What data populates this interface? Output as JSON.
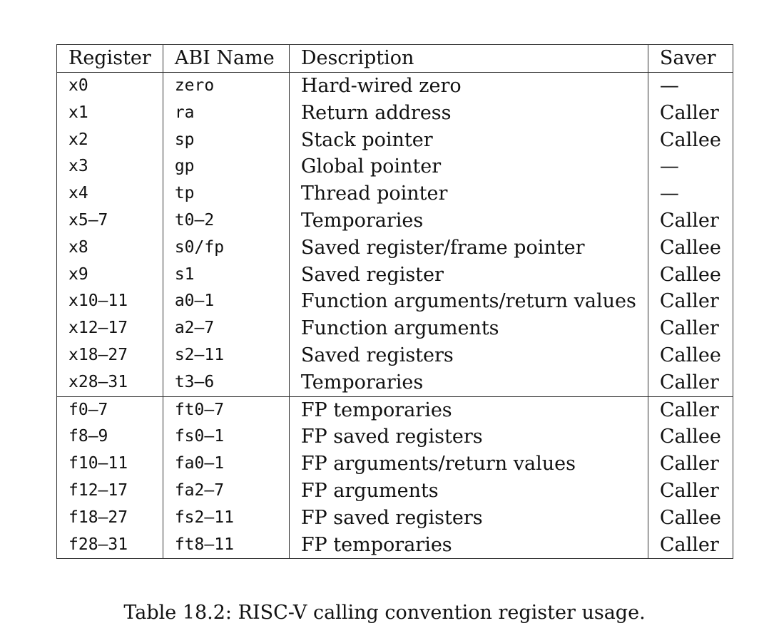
{
  "table": {
    "headers": [
      "Register",
      "ABI Name",
      "Description",
      "Saver"
    ],
    "groups": [
      {
        "rows": [
          {
            "register": "x0",
            "abi": "zero",
            "description": "Hard-wired zero",
            "saver": "—"
          },
          {
            "register": "x1",
            "abi": "ra",
            "description": "Return address",
            "saver": "Caller"
          },
          {
            "register": "x2",
            "abi": "sp",
            "description": "Stack pointer",
            "saver": "Callee"
          },
          {
            "register": "x3",
            "abi": "gp",
            "description": "Global pointer",
            "saver": "—"
          },
          {
            "register": "x4",
            "abi": "tp",
            "description": "Thread pointer",
            "saver": "—"
          },
          {
            "register": "x5–7",
            "abi": "t0–2",
            "description": "Temporaries",
            "saver": "Caller"
          },
          {
            "register": "x8",
            "abi": "s0/fp",
            "description": "Saved register/frame pointer",
            "saver": "Callee"
          },
          {
            "register": "x9",
            "abi": "s1",
            "description": "Saved register",
            "saver": "Callee"
          },
          {
            "register": "x10–11",
            "abi": "a0–1",
            "description": "Function arguments/return values",
            "saver": "Caller"
          },
          {
            "register": "x12–17",
            "abi": "a2–7",
            "description": "Function arguments",
            "saver": "Caller"
          },
          {
            "register": "x18–27",
            "abi": "s2–11",
            "description": "Saved registers",
            "saver": "Callee"
          },
          {
            "register": "x28–31",
            "abi": "t3–6",
            "description": "Temporaries",
            "saver": "Caller"
          }
        ]
      },
      {
        "rows": [
          {
            "register": "f0–7",
            "abi": "ft0–7",
            "description": "FP temporaries",
            "saver": "Caller"
          },
          {
            "register": "f8–9",
            "abi": "fs0–1",
            "description": "FP saved registers",
            "saver": "Callee"
          },
          {
            "register": "f10–11",
            "abi": "fa0–1",
            "description": "FP arguments/return values",
            "saver": "Caller"
          },
          {
            "register": "f12–17",
            "abi": "fa2–7",
            "description": "FP arguments",
            "saver": "Caller"
          },
          {
            "register": "f18–27",
            "abi": "fs2–11",
            "description": "FP saved registers",
            "saver": "Callee"
          },
          {
            "register": "f28–31",
            "abi": "ft8–11",
            "description": "FP temporaries",
            "saver": "Caller"
          }
        ]
      }
    ]
  },
  "caption": "Table 18.2: RISC-V calling convention register usage."
}
